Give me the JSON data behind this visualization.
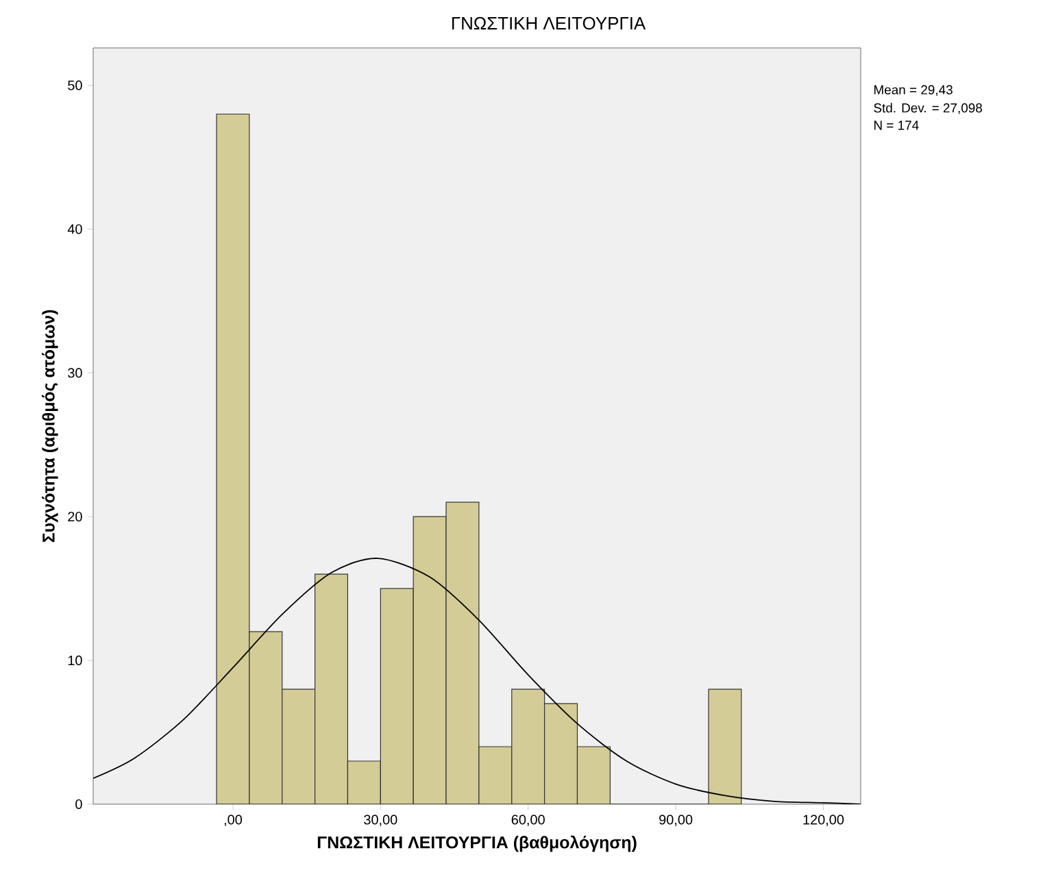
{
  "chart_data": {
    "type": "histogram",
    "title": "ΓΝΩΣΤΙΚΗ ΛΕΙΤΟΥΡΓΙΑ",
    "xlabel": "ΓΝΩΣΤΙΚΗ ΛΕΙΤΟΥΡΓΙΑ (βαθμολόγηση)",
    "ylabel": "Συχνότητα (αριθμός ατόμων)",
    "bins": [
      -3.33,
      3.33,
      10,
      16.67,
      23.33,
      30,
      36.67,
      43.33,
      50,
      56.67,
      63.33,
      70,
      76.67,
      83.33,
      90,
      96.67,
      103.33
    ],
    "values": [
      48,
      12,
      8,
      16,
      3,
      15,
      20,
      21,
      4,
      8,
      7,
      4,
      0,
      0,
      0,
      8
    ],
    "color": "#d3cc96",
    "series": [
      {
        "type": "line",
        "color": "#000000",
        "x": [
          -28.4,
          -20,
          -10,
          0,
          10,
          20,
          29.43,
          40,
          50,
          60,
          70,
          80,
          90,
          100,
          110,
          120,
          127.6
        ],
        "values": [
          1.8,
          3.2,
          5.9,
          9.5,
          13.2,
          16.1,
          17.1,
          15.8,
          12.8,
          9.0,
          5.6,
          3.0,
          1.4,
          0.6,
          0.2,
          0.1,
          0.0
        ]
      }
    ],
    "xlim": [
      -28.4,
      127.6
    ],
    "ylim": [
      0,
      52.6
    ],
    "xticks": [
      {
        "value": 0,
        "label": ",00"
      },
      {
        "value": 30,
        "label": "30,00"
      },
      {
        "value": 60,
        "label": "60,00"
      },
      {
        "value": 90,
        "label": "90,00"
      },
      {
        "value": 120,
        "label": "120,00"
      }
    ],
    "yticks": [
      0,
      10,
      20,
      30,
      40,
      50
    ],
    "annotations": [
      "Mean = 29,43",
      "Std. Dev. = 27,098",
      "N = 174"
    ]
  }
}
